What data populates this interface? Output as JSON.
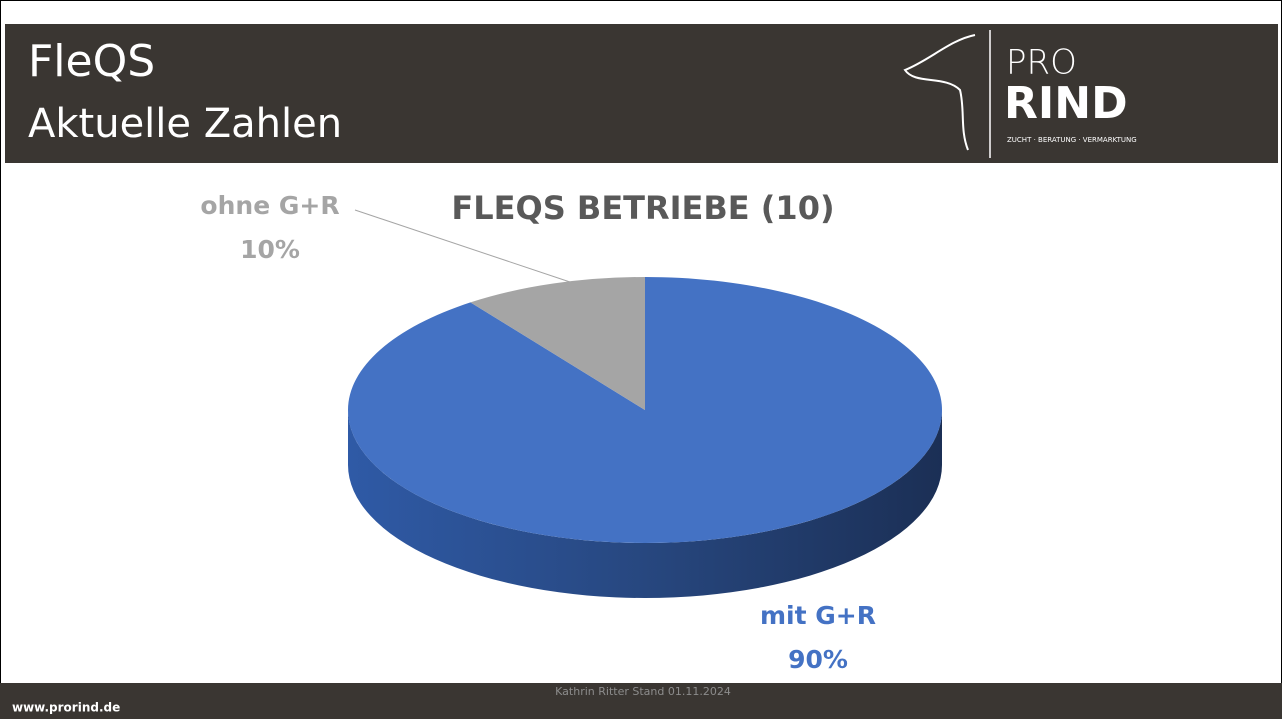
{
  "header": {
    "title": "FleQS",
    "subtitle": "Aktuelle Zahlen",
    "logo_top": "PRO",
    "logo_main": "RIND",
    "logo_tagline": "ZUCHT · BERATUNG · VERMARKTUNG"
  },
  "chart_data": {
    "type": "pie",
    "title": "FLEQS BETRIEBE (10)",
    "categories": [
      "mit G+R",
      "ohne G+R"
    ],
    "values": [
      90,
      10
    ],
    "value_labels": [
      "90%",
      "10%"
    ],
    "colors": [
      "#4472c4",
      "#a5a5a5"
    ]
  },
  "footer": {
    "website": "www.prorind.de",
    "note": "Kathrin Ritter Stand 01.11.2024"
  }
}
